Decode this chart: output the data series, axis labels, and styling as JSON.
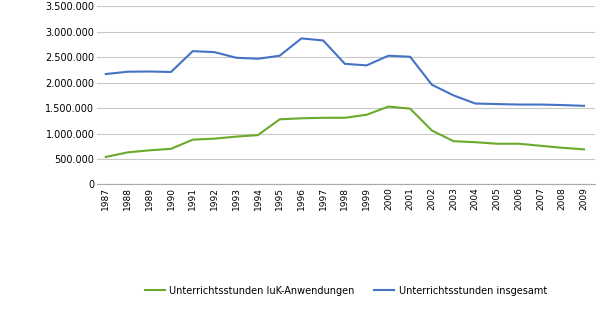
{
  "years": [
    1987,
    1988,
    1989,
    1990,
    1991,
    1992,
    1993,
    1994,
    1995,
    1996,
    1997,
    1998,
    1999,
    2000,
    2001,
    2002,
    2003,
    2004,
    2005,
    2006,
    2007,
    2008,
    2009
  ],
  "iuk": [
    540000,
    630000,
    670000,
    700000,
    880000,
    900000,
    940000,
    970000,
    1280000,
    1300000,
    1310000,
    1310000,
    1370000,
    1530000,
    1490000,
    1060000,
    850000,
    830000,
    800000,
    800000,
    760000,
    720000,
    690000
  ],
  "gesamt": [
    2170000,
    2215000,
    2220000,
    2210000,
    2620000,
    2600000,
    2490000,
    2470000,
    2530000,
    2870000,
    2830000,
    2370000,
    2340000,
    2530000,
    2510000,
    1960000,
    1750000,
    1590000,
    1580000,
    1570000,
    1570000,
    1560000,
    1545000
  ],
  "iuk_color": "#6aaa2a",
  "gesamt_color": "#4472c4",
  "iuk_label": "Unterrichtsstunden IuK-Anwendungen",
  "gesamt_label": "Unterrichtsstunden insgesamt",
  "ylim": [
    0,
    3500000
  ],
  "yticks": [
    0,
    500000,
    1000000,
    1500000,
    2000000,
    2500000,
    3000000,
    3500000
  ],
  "background_color": "#ffffff",
  "grid_color": "#c8c8c8"
}
